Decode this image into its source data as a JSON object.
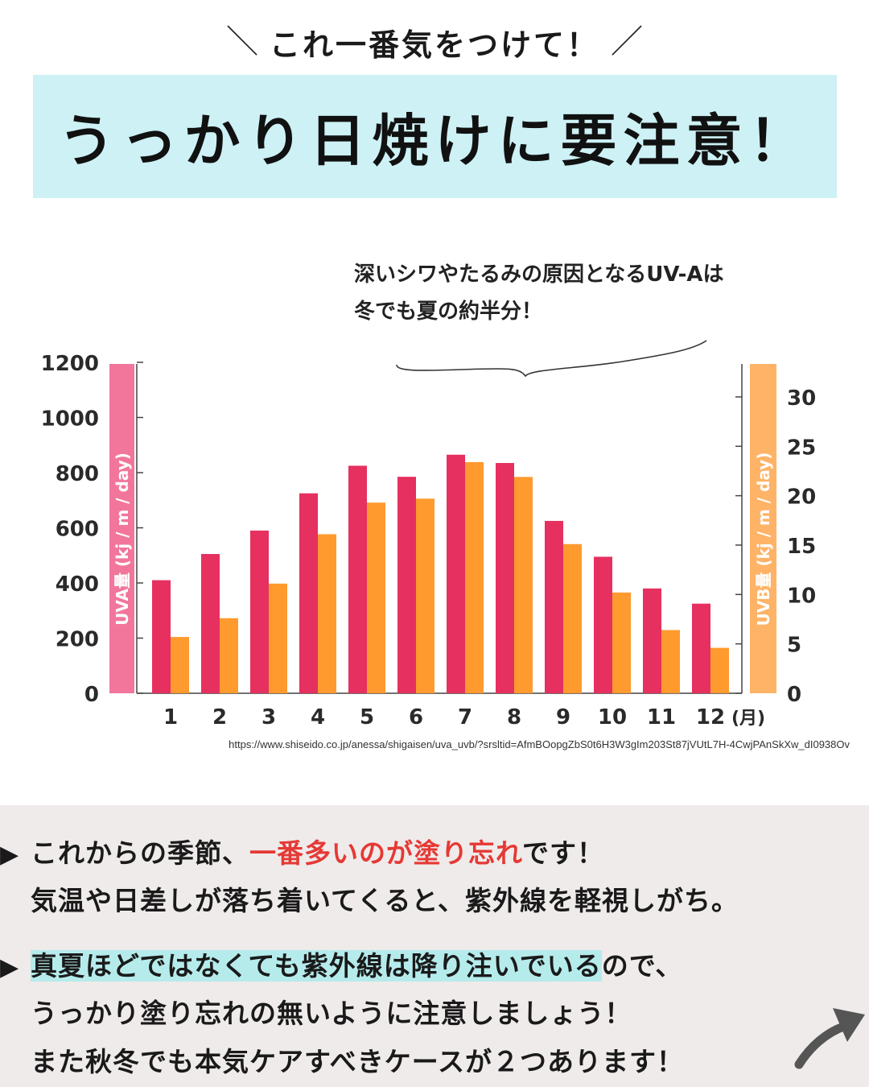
{
  "header": {
    "caption": "これ一番気をつけて！",
    "title": "うっかり日焼けに要注意！"
  },
  "callout": {
    "line1": "深いシワやたるみの原因となるUV-Aは",
    "line2": "冬でも夏の約半分！"
  },
  "chart_data": {
    "type": "bar",
    "categories": [
      "1",
      "2",
      "3",
      "4",
      "5",
      "6",
      "7",
      "8",
      "9",
      "10",
      "11",
      "12"
    ],
    "x_unit": "(月)",
    "series": [
      {
        "name": "UVA量 (kj / m / day)",
        "axis": "left",
        "color": "#e6305f",
        "values": [
          410,
          505,
          590,
          725,
          825,
          785,
          865,
          835,
          625,
          495,
          380,
          325
        ]
      },
      {
        "name": "UVB量 (kj / m / day)",
        "axis": "right",
        "color": "#ff9a2f",
        "values": [
          5.7,
          7.6,
          11.1,
          16.1,
          19.3,
          19.7,
          23.4,
          21.9,
          15.1,
          10.2,
          6.4,
          4.6
        ]
      }
    ],
    "y_left": {
      "label": "UVA量 (kj / m / day)",
      "ticks": [
        0,
        200,
        400,
        600,
        800,
        1000,
        1200
      ],
      "range": [
        0,
        1200
      ],
      "color": "#f2769c"
    },
    "y_right": {
      "label": "UVB量 (kj / m / day)",
      "ticks": [
        0,
        5,
        10,
        15,
        20,
        25,
        30
      ],
      "range": [
        0,
        33.5
      ],
      "color": "#ffb366"
    },
    "grid": false,
    "legend": "none"
  },
  "source": "https://www.shiseido.co.jp/anessa/shigaisen/uva_uvb/?srsltid=AfmBOopgZbS0t6H3W3gIm203St87jVUtL7H-4CwjPAnSkXw_dI0938Ov",
  "bullets": [
    {
      "line1_pre": "これからの季節、",
      "line1_red": "一番多いのが塗り忘れ",
      "line1_post": "です！",
      "line2": "気温や日差しが落ち着いてくると、紫外線を軽視しがち。"
    },
    {
      "line1_hl": "真夏ほどではなくても紫外線は降り注いでいる",
      "line1_post": "ので、",
      "line2": "うっかり塗り忘れの無いように注意しましょう！",
      "line3": "また秋冬でも本気ケアすべきケースが２つあります！"
    }
  ],
  "icons": {
    "bullet": "▶",
    "arrow": "curved-arrow-icon"
  },
  "colors": {
    "banner": "#cdf1f5",
    "highlight": "#b6ebec",
    "emphasis": "#e53935",
    "bottom_bg": "#efebea"
  }
}
